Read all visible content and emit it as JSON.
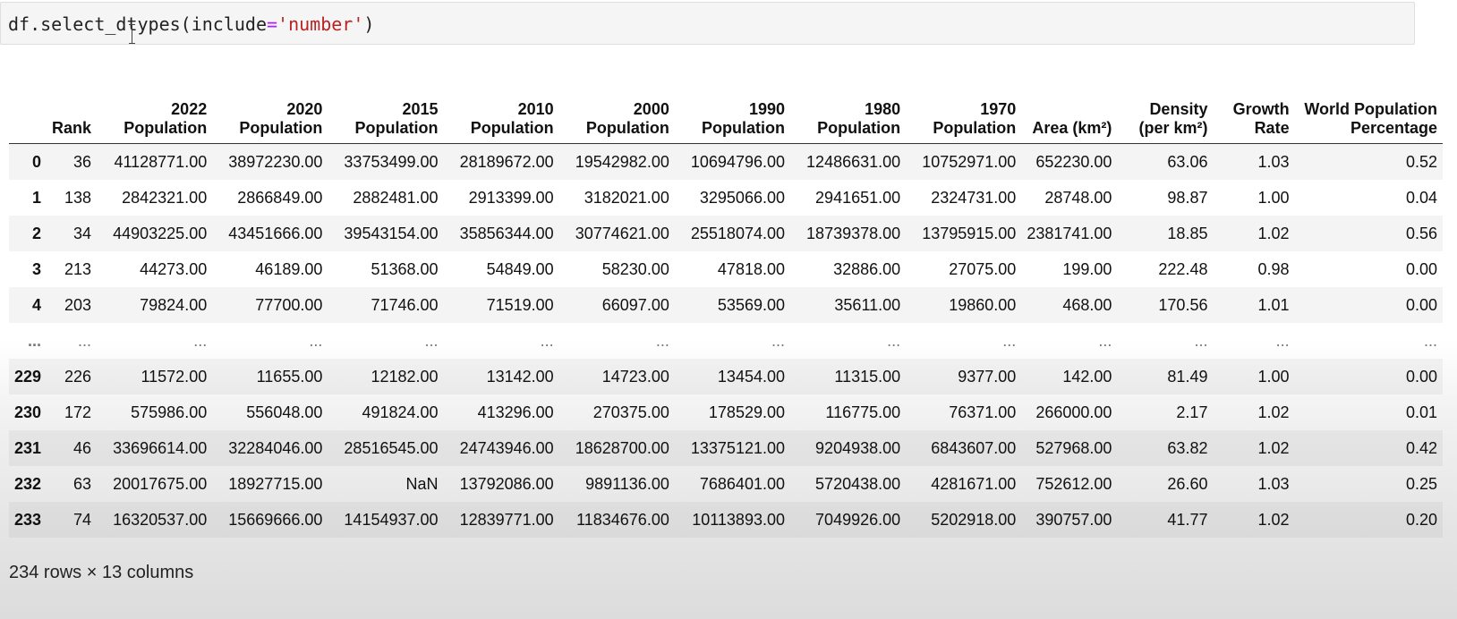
{
  "code_cell": {
    "prefix": "df.select_dtypes(include",
    "operator": "=",
    "string_arg": "'number'",
    "suffix": ")"
  },
  "table": {
    "columns": [
      "",
      "Rank",
      "2022 Population",
      "2020 Population",
      "2015 Population",
      "2010 Population",
      "2000 Population",
      "1990 Population",
      "1980 Population",
      "1970 Population",
      "Area (km²)",
      "Density (per km²)",
      "Growth Rate",
      "World Population Percentage"
    ],
    "rows": [
      [
        "0",
        "36",
        "41128771.00",
        "38972230.00",
        "33753499.00",
        "28189672.00",
        "19542982.00",
        "10694796.00",
        "12486631.00",
        "10752971.00",
        "652230.00",
        "63.06",
        "1.03",
        "0.52"
      ],
      [
        "1",
        "138",
        "2842321.00",
        "2866849.00",
        "2882481.00",
        "2913399.00",
        "3182021.00",
        "3295066.00",
        "2941651.00",
        "2324731.00",
        "28748.00",
        "98.87",
        "1.00",
        "0.04"
      ],
      [
        "2",
        "34",
        "44903225.00",
        "43451666.00",
        "39543154.00",
        "35856344.00",
        "30774621.00",
        "25518074.00",
        "18739378.00",
        "13795915.00",
        "2381741.00",
        "18.85",
        "1.02",
        "0.56"
      ],
      [
        "3",
        "213",
        "44273.00",
        "46189.00",
        "51368.00",
        "54849.00",
        "58230.00",
        "47818.00",
        "32886.00",
        "27075.00",
        "199.00",
        "222.48",
        "0.98",
        "0.00"
      ],
      [
        "4",
        "203",
        "79824.00",
        "77700.00",
        "71746.00",
        "71519.00",
        "66097.00",
        "53569.00",
        "35611.00",
        "19860.00",
        "468.00",
        "170.56",
        "1.01",
        "0.00"
      ],
      [
        "...",
        "...",
        "...",
        "...",
        "...",
        "...",
        "...",
        "...",
        "...",
        "...",
        "...",
        "...",
        "...",
        "..."
      ],
      [
        "229",
        "226",
        "11572.00",
        "11655.00",
        "12182.00",
        "13142.00",
        "14723.00",
        "13454.00",
        "11315.00",
        "9377.00",
        "142.00",
        "81.49",
        "1.00",
        "0.00"
      ],
      [
        "230",
        "172",
        "575986.00",
        "556048.00",
        "491824.00",
        "413296.00",
        "270375.00",
        "178529.00",
        "116775.00",
        "76371.00",
        "266000.00",
        "2.17",
        "1.02",
        "0.01"
      ],
      [
        "231",
        "46",
        "33696614.00",
        "32284046.00",
        "28516545.00",
        "24743946.00",
        "18628700.00",
        "13375121.00",
        "9204938.00",
        "6843607.00",
        "527968.00",
        "63.82",
        "1.02",
        "0.42"
      ],
      [
        "232",
        "63",
        "20017675.00",
        "18927715.00",
        "NaN",
        "13792086.00",
        "9891136.00",
        "7686401.00",
        "5720438.00",
        "4281671.00",
        "752612.00",
        "26.60",
        "1.03",
        "0.25"
      ],
      [
        "233",
        "74",
        "16320537.00",
        "15669666.00",
        "14154937.00",
        "12839771.00",
        "11834676.00",
        "10113893.00",
        "7049926.00",
        "5202918.00",
        "390757.00",
        "41.77",
        "1.02",
        "0.20"
      ]
    ]
  },
  "shape_info": "234 rows × 13 columns",
  "colors": {
    "code_background": "#f5f5f5",
    "string_literal": "#ba2121",
    "operator": "#aa22ff",
    "stripe": "#f0f0f0"
  },
  "icons": {
    "cursor": "i-beam-cursor-icon"
  }
}
